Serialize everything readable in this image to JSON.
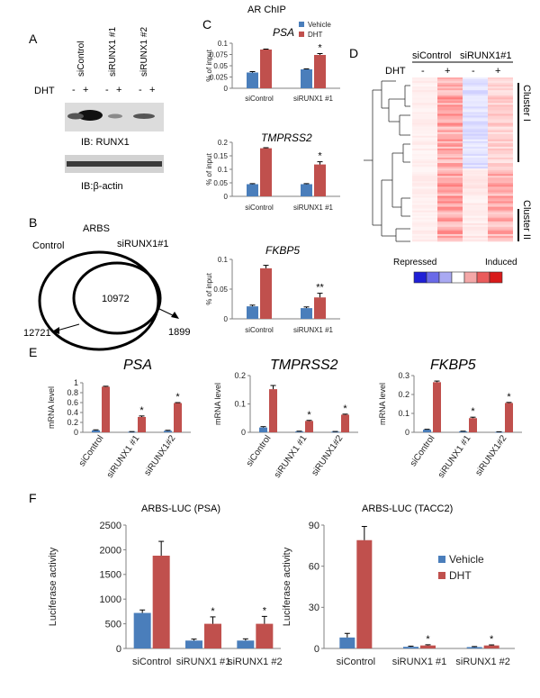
{
  "colors": {
    "vehicle": "#4a7ebb",
    "dht": "#c0504d",
    "axis": "#808080",
    "text": "#222222"
  },
  "panel_labels": {
    "a": "A",
    "b": "B",
    "c": "C",
    "d": "D",
    "e": "E",
    "f": "F"
  },
  "panel_a": {
    "lanes": [
      "siControl",
      "siRUNX1 #1",
      "siRUNX1 #2"
    ],
    "dht_label": "DHT",
    "signs": [
      "-",
      "+",
      "-",
      "+",
      "-",
      "+"
    ],
    "blot1_label": "IB: RUNX1",
    "blot2_label": "IB:β-actin"
  },
  "panel_b": {
    "title": "ARBS",
    "left_label": "Control",
    "right_label": "siRUNX1#1",
    "overlap": "10972",
    "left_only": "12721",
    "right_only": "1899"
  },
  "panel_c": {
    "title": "AR ChIP"
  },
  "panel_d": {
    "groups": [
      "siControl",
      "siRUNX1#1"
    ],
    "dht_label": "DHT",
    "signs": [
      "-",
      "+",
      "-",
      "+"
    ],
    "cluster1": "Cluster I",
    "cluster2": "Cluster II",
    "repressed": "Repressed",
    "induced": "Induced",
    "scale_colors": [
      "#1f1fd6",
      "#6a6ae8",
      "#a9a9f2",
      "#ffffff",
      "#f4a8a8",
      "#ea5b5b",
      "#d81a1a"
    ]
  },
  "chart_data": [
    {
      "id": "c-psa",
      "type": "bar",
      "title": "PSA",
      "ylabel": "% of input",
      "categories": [
        "siControl",
        "siRUNX1 #1"
      ],
      "series": [
        {
          "name": "Vehicle",
          "values": [
            0.035,
            0.042
          ]
        },
        {
          "name": "DHT",
          "values": [
            0.086,
            0.074
          ]
        }
      ],
      "errors": [
        [
          0.002,
          0.001
        ],
        [
          0.001,
          0.003
        ]
      ],
      "ylim": [
        0,
        0.1
      ],
      "ticks": [
        "0",
        "0.025",
        "0.05",
        "0.075",
        "0.1"
      ],
      "tick_values": [
        0,
        0.025,
        0.05,
        0.075,
        0.1
      ],
      "stars": [
        null,
        "*"
      ],
      "legend": "top-right"
    },
    {
      "id": "c-tmprss2",
      "type": "bar",
      "title": "TMPRSS2",
      "ylabel": "% of input",
      "categories": [
        "siControl",
        "siRUNX1 #1"
      ],
      "series": [
        {
          "name": "Vehicle",
          "values": [
            0.045,
            0.045
          ]
        },
        {
          "name": "DHT",
          "values": [
            0.178,
            0.118
          ]
        }
      ],
      "errors": [
        [
          0.002,
          0.002
        ],
        [
          0.002,
          0.01
        ]
      ],
      "ylim": [
        0,
        0.2
      ],
      "ticks": [
        "0",
        "0.05",
        "0.1",
        "0.15",
        "0.2"
      ],
      "tick_values": [
        0,
        0.05,
        0.1,
        0.15,
        0.2
      ],
      "stars": [
        null,
        "*"
      ]
    },
    {
      "id": "c-fkbp5",
      "type": "bar",
      "title": "FKBP5",
      "ylabel": "% of input",
      "categories": [
        "siControl",
        "siRUNX1 #1"
      ],
      "series": [
        {
          "name": "Vehicle",
          "values": [
            0.021,
            0.018
          ]
        },
        {
          "name": "DHT",
          "values": [
            0.085,
            0.036
          ]
        }
      ],
      "errors": [
        [
          0.002,
          0.002
        ],
        [
          0.005,
          0.007
        ]
      ],
      "ylim": [
        0,
        0.1
      ],
      "ticks": [
        "0",
        "0.05",
        "0.1"
      ],
      "tick_values": [
        0,
        0.05,
        0.1
      ],
      "stars": [
        null,
        "**"
      ]
    },
    {
      "id": "e-psa",
      "type": "bar",
      "title": "PSA",
      "ylabel": "mRNA level",
      "categories": [
        "siControl",
        "siRUNX1 #1",
        "siRUNX1#2"
      ],
      "series": [
        {
          "name": "Vehicle",
          "values": [
            0.04,
            0.01,
            0.03
          ]
        },
        {
          "name": "DHT",
          "values": [
            0.92,
            0.31,
            0.59
          ]
        }
      ],
      "errors": [
        [
          0.01,
          0.005,
          0.01
        ],
        [
          0.01,
          0.02,
          0.01
        ]
      ],
      "ylim": [
        0,
        1
      ],
      "ticks": [
        "0",
        "0.2",
        "0.4",
        "0.6",
        "0.8",
        "1"
      ],
      "tick_values": [
        0,
        0.2,
        0.4,
        0.6,
        0.8,
        1
      ],
      "stars": [
        null,
        "*",
        "*"
      ]
    },
    {
      "id": "e-tmprss2",
      "type": "bar",
      "title": "TMPRSS2",
      "ylabel": "mRNA level",
      "categories": [
        "siControl",
        "siRUNX1 #1",
        "siRUNX1#2"
      ],
      "series": [
        {
          "name": "Vehicle",
          "values": [
            0.017,
            0.003,
            0.002
          ]
        },
        {
          "name": "DHT",
          "values": [
            0.152,
            0.04,
            0.062
          ]
        }
      ],
      "errors": [
        [
          0.003,
          0.001,
          0.001
        ],
        [
          0.013,
          0.002,
          0.002
        ]
      ],
      "ylim": [
        0,
        0.2
      ],
      "ticks": [
        "0",
        "0.1",
        "0.2"
      ],
      "tick_values": [
        0,
        0.1,
        0.2
      ],
      "stars": [
        null,
        "*",
        "*"
      ]
    },
    {
      "id": "e-fkbp5",
      "type": "bar",
      "title": "FKBP5",
      "ylabel": "mRNA level",
      "categories": [
        "siControl",
        "siRUNX1 #1",
        "siRUNX1#2"
      ],
      "series": [
        {
          "name": "Vehicle",
          "values": [
            0.014,
            0.005,
            0.002
          ]
        },
        {
          "name": "DHT",
          "values": [
            0.265,
            0.075,
            0.155
          ]
        }
      ],
      "errors": [
        [
          0.002,
          0.001,
          0.001
        ],
        [
          0.006,
          0.005,
          0.003
        ]
      ],
      "ylim": [
        0,
        0.3
      ],
      "ticks": [
        "0",
        "0.1",
        "0.2",
        "0.3"
      ],
      "tick_values": [
        0,
        0.1,
        0.2,
        0.3
      ],
      "stars": [
        null,
        "*",
        "*"
      ]
    },
    {
      "id": "f-psa",
      "type": "bar",
      "title": "ARBS-LUC (PSA)",
      "ylabel": "Luciferase activity",
      "categories": [
        "siControl",
        "siRUNX1 #1",
        "siRUNX1 #2"
      ],
      "series": [
        {
          "name": "Vehicle",
          "values": [
            720,
            160,
            160
          ]
        },
        {
          "name": "DHT",
          "values": [
            1880,
            500,
            500
          ]
        }
      ],
      "errors": [
        [
          60,
          30,
          35
        ],
        [
          290,
          140,
          150
        ]
      ],
      "ylim": [
        0,
        2500
      ],
      "ticks": [
        "0",
        "500",
        "1000",
        "1500",
        "2000",
        "2500"
      ],
      "tick_values": [
        0,
        500,
        1000,
        1500,
        2000,
        2500
      ],
      "stars": [
        null,
        "*",
        "*"
      ]
    },
    {
      "id": "f-tacc2",
      "type": "bar",
      "title": "ARBS-LUC (TACC2)",
      "ylabel": "Luciferase activity",
      "categories": [
        "siControl",
        "siRUNX1 #1",
        "siRUNX1 #2"
      ],
      "series": [
        {
          "name": "Vehicle",
          "values": [
            8,
            1.2,
            1.0
          ]
        },
        {
          "name": "DHT",
          "values": [
            79,
            2.2,
            2.2
          ]
        }
      ],
      "errors": [
        [
          3,
          0.5,
          0.4
        ],
        [
          10,
          0.5,
          0.4
        ]
      ],
      "ylim": [
        0,
        90
      ],
      "ticks": [
        "0",
        "30",
        "60",
        "90"
      ],
      "tick_values": [
        0,
        30,
        60,
        90
      ],
      "stars": [
        null,
        "*",
        "*"
      ],
      "legend": "right"
    }
  ]
}
